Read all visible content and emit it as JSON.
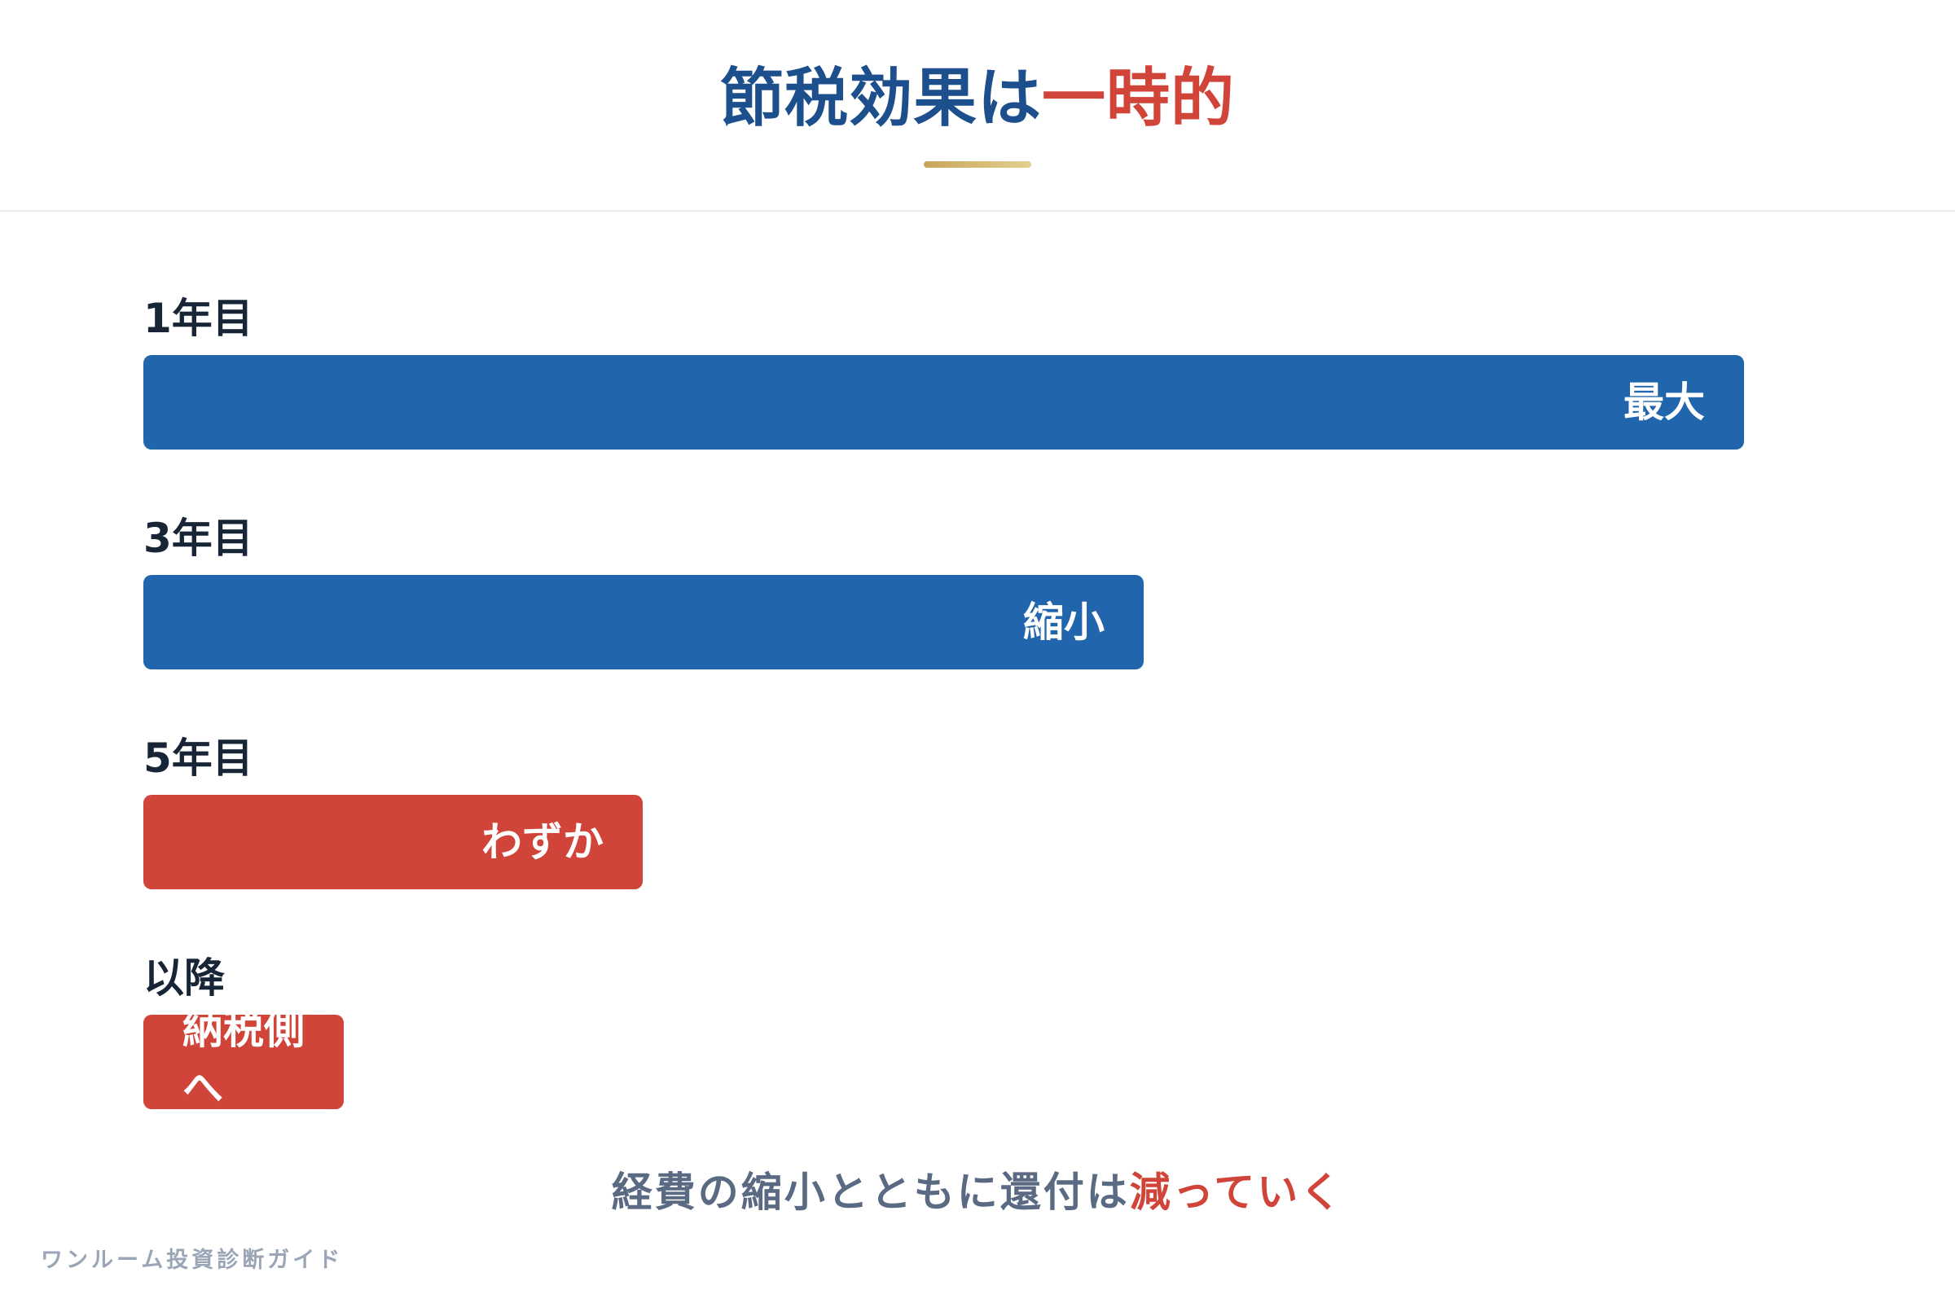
{
  "title": {
    "main": "節税効果は",
    "accent": "一時的",
    "main_color": "#1d4f8c",
    "accent_color": "#d1443a",
    "underline_color_start": "#c9a55a",
    "underline_color_end": "#e3cf8f"
  },
  "chart_data": {
    "type": "bar",
    "orientation": "horizontal",
    "title": "",
    "xlabel": "",
    "ylabel": "",
    "categories": [
      "1年目",
      "3年目",
      "5年目",
      "以降"
    ],
    "values": [
      100,
      62.5,
      31.2,
      12.5
    ],
    "value_labels": [
      "最大",
      "縮小",
      "わずか",
      "納税側へ"
    ],
    "colors": [
      "#2166ac",
      "#2166ac",
      "#d1443a",
      "#d1443a"
    ],
    "xlim": [
      0,
      100
    ],
    "grid": false,
    "legend": "none"
  },
  "caption": {
    "main": "経費の縮小とともに還付は",
    "accent": "減っていく"
  },
  "footer": {
    "text": "ワンルーム投資診断ガイド"
  }
}
